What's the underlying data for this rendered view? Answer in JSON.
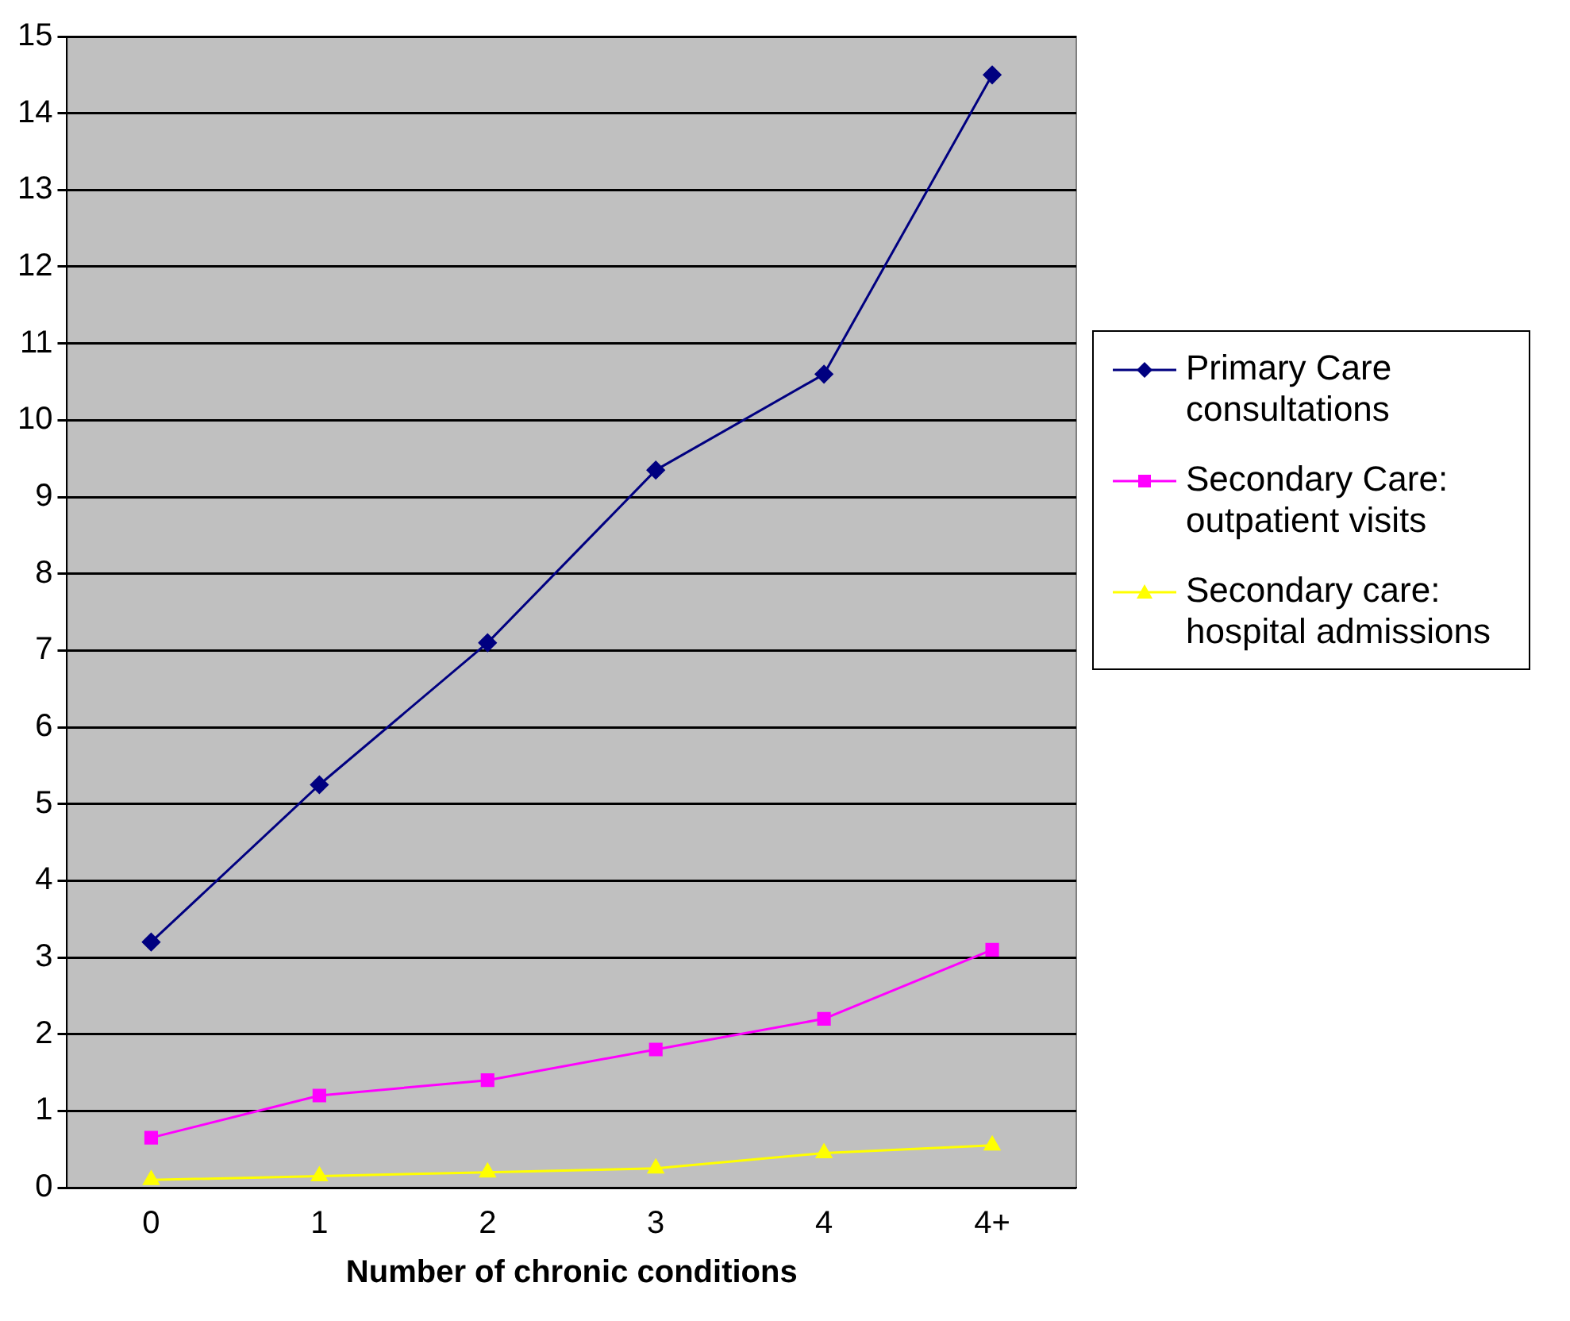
{
  "chart_data": {
    "type": "line",
    "xlabel": "Number of chronic conditions",
    "categories": [
      "0",
      "1",
      "2",
      "3",
      "4",
      "4+"
    ],
    "series": [
      {
        "name": "Primary Care consultations",
        "color": "#000080",
        "marker": "diamond",
        "values": [
          3.2,
          5.25,
          7.1,
          9.35,
          10.6,
          14.5
        ]
      },
      {
        "name": "Secondary Care: outpatient visits",
        "color": "#ff00ff",
        "marker": "square",
        "values": [
          0.65,
          1.2,
          1.4,
          1.8,
          2.2,
          3.1
        ]
      },
      {
        "name": "Secondary care: hospital admissions",
        "color": "#ffff00",
        "marker": "triangle",
        "values": [
          0.1,
          0.15,
          0.2,
          0.25,
          0.45,
          0.55
        ]
      }
    ],
    "ylim": [
      0,
      15
    ],
    "yticks": [
      0,
      1,
      2,
      3,
      4,
      5,
      6,
      7,
      8,
      9,
      10,
      11,
      12,
      13,
      14,
      15
    ],
    "grid": "y",
    "legend": "right",
    "line_style": "solid"
  }
}
